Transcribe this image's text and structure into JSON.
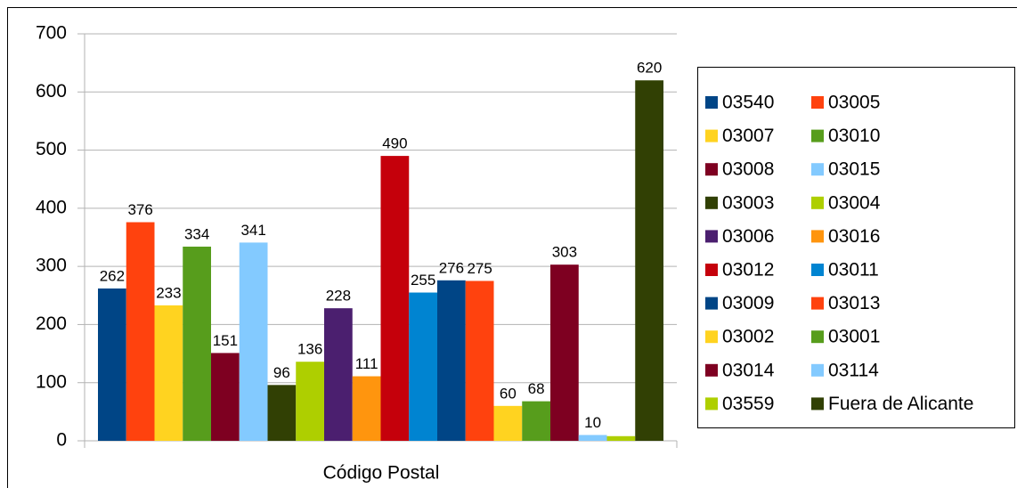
{
  "chart_data": {
    "type": "bar",
    "x_label": "Código Postal",
    "ylim": [
      0,
      700
    ],
    "yticks": [
      0,
      100,
      200,
      300,
      400,
      500,
      600,
      700
    ],
    "grid": true,
    "legend": "right",
    "series": [
      {
        "name": "03540",
        "color": "#004586",
        "values": [
          262
        ]
      },
      {
        "name": "03005",
        "color": "#ff420e",
        "values": [
          376
        ]
      },
      {
        "name": "03007",
        "color": "#ffd320",
        "values": [
          233
        ]
      },
      {
        "name": "03010",
        "color": "#579d1c",
        "values": [
          334
        ]
      },
      {
        "name": "03008",
        "color": "#7e0021",
        "values": [
          151
        ]
      },
      {
        "name": "03015",
        "color": "#83caff",
        "values": [
          341
        ]
      },
      {
        "name": "03003",
        "color": "#314004",
        "values": [
          96
        ]
      },
      {
        "name": "03004",
        "color": "#aecf00",
        "values": [
          136
        ]
      },
      {
        "name": "03006",
        "color": "#4b1f6f",
        "values": [
          228
        ]
      },
      {
        "name": "03016",
        "color": "#ff950e",
        "values": [
          111
        ]
      },
      {
        "name": "03012",
        "color": "#c5000b",
        "values": [
          490
        ]
      },
      {
        "name": "03011",
        "color": "#0084d1",
        "values": [
          255
        ]
      },
      {
        "name": "03009",
        "color": "#004586",
        "values": [
          276
        ]
      },
      {
        "name": "03013",
        "color": "#ff420e",
        "values": [
          275
        ]
      },
      {
        "name": "03002",
        "color": "#ffd320",
        "values": [
          60
        ]
      },
      {
        "name": "03001",
        "color": "#579d1c",
        "values": [
          68
        ]
      },
      {
        "name": "03014",
        "color": "#7e0021",
        "values": [
          303
        ]
      },
      {
        "name": "03114",
        "color": "#83caff",
        "values": [
          10
        ]
      },
      {
        "name": "03559",
        "color": "#aecf00",
        "values": [
          8
        ],
        "value_labels": [
          null
        ]
      },
      {
        "name": "Fuera de Alicante",
        "color": "#314004",
        "values": [
          620
        ]
      }
    ]
  }
}
